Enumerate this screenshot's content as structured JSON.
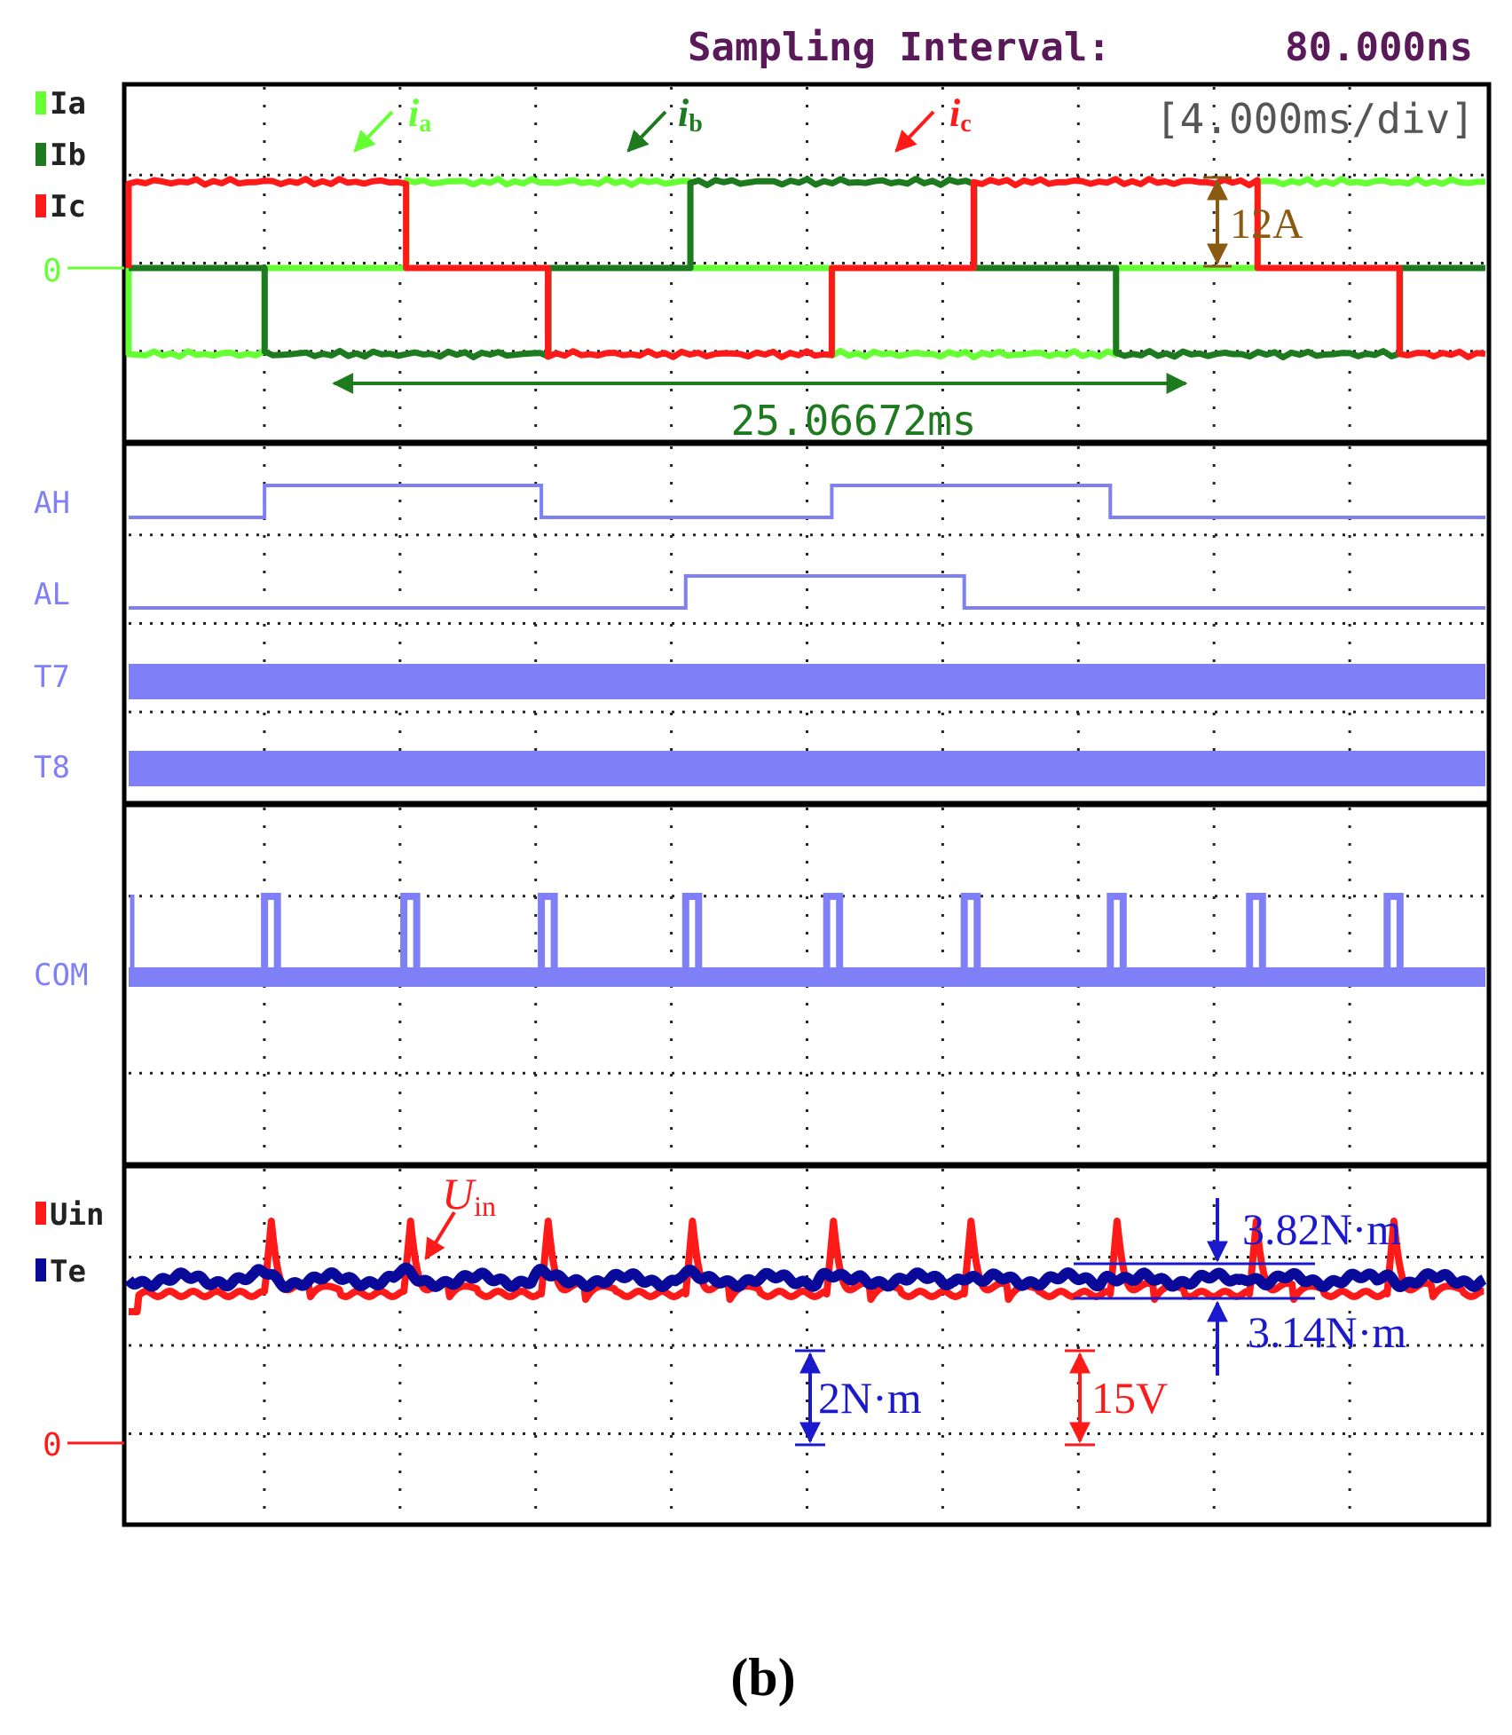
{
  "header": {
    "sampling_label": "Sampling Interval:",
    "sampling_value": "80.000ns",
    "timebase": "[4.000ms/div]"
  },
  "colors": {
    "ia": "#66ff33",
    "ib": "#1e7a1e",
    "ic": "#ff1a1a",
    "logic": "#7f7ff7",
    "uin": "#ff1a1a",
    "te": "#0a0a9a",
    "amp": "#8a5a10",
    "blue_ann": "#1a1acc",
    "header": "#5a1a5a"
  },
  "chart_data": {
    "type": "line",
    "time_per_div_ms": 4.0,
    "x_divisions": 10,
    "panels": [
      {
        "name": "currents",
        "channel_labels": [
          "Ia",
          "Ib",
          "Ic"
        ],
        "zero_label": "0",
        "period_ms": 25.06672,
        "amplitude_A": 12,
        "series": [
          {
            "name": "Ia",
            "curve_label": "i",
            "curve_sub": "a",
            "color": "#66ff33",
            "levels_A": [
              0,
              12,
              12,
              0,
              -12,
              -12
            ],
            "phase_offset_ms": 4.0
          },
          {
            "name": "Ib",
            "curve_label": "i",
            "curve_sub": "b",
            "color": "#1e7a1e",
            "levels_A": [
              0,
              12,
              12,
              0,
              -12,
              -12
            ],
            "phase_offset_ms": 12.36
          },
          {
            "name": "Ic",
            "curve_label": "i",
            "curve_sub": "c",
            "color": "#ff1a1a",
            "levels_A": [
              0,
              12,
              12,
              0,
              -12,
              -12
            ],
            "phase_offset_ms": 20.7
          }
        ],
        "annotations": {
          "period_text": "25.06672ms",
          "amplitude_text": "12A"
        }
      },
      {
        "name": "logic",
        "channels": [
          {
            "name": "AH",
            "high_intervals_ms": [
              [
                4.0,
                12.15
              ],
              [
                20.7,
                28.9
              ]
            ]
          },
          {
            "name": "AL",
            "high_intervals_ms": [
              [
                16.4,
                24.6
              ]
            ]
          },
          {
            "name": "T7",
            "type": "pwm"
          },
          {
            "name": "T8",
            "type": "pwm"
          }
        ]
      },
      {
        "name": "com",
        "channels": [
          {
            "name": "COM",
            "pulse_starts_ms": [
              4.0,
              8.1,
              12.15,
              16.4,
              20.55,
              24.6,
              28.9,
              33.0,
              37.05
            ],
            "pulse_width_ms": 0.38,
            "dip_times_ms": [
              4.3,
              12.3,
              24.9,
              33.3
            ]
          }
        ]
      },
      {
        "name": "voltage-torque",
        "channel_labels": [
          "Uin",
          "Te"
        ],
        "zero_label": "0",
        "series": [
          {
            "name": "Uin",
            "curve_label": "U",
            "curve_sub": "in",
            "color": "#ff1a1a",
            "spike_times_ms": [
              4.0,
              8.1,
              12.15,
              16.4,
              20.55,
              24.6,
              28.9,
              33.0,
              37.05
            ]
          },
          {
            "name": "Te",
            "color": "#0a0a9a",
            "max_Nm": 3.82,
            "min_Nm": 3.14
          }
        ],
        "annotations": {
          "te_max_text": "3.82N·m",
          "te_min_text": "3.14N·m",
          "torque_scale_text": "2N·m",
          "voltage_scale_text": "15V"
        }
      }
    ]
  },
  "caption": "(b)"
}
